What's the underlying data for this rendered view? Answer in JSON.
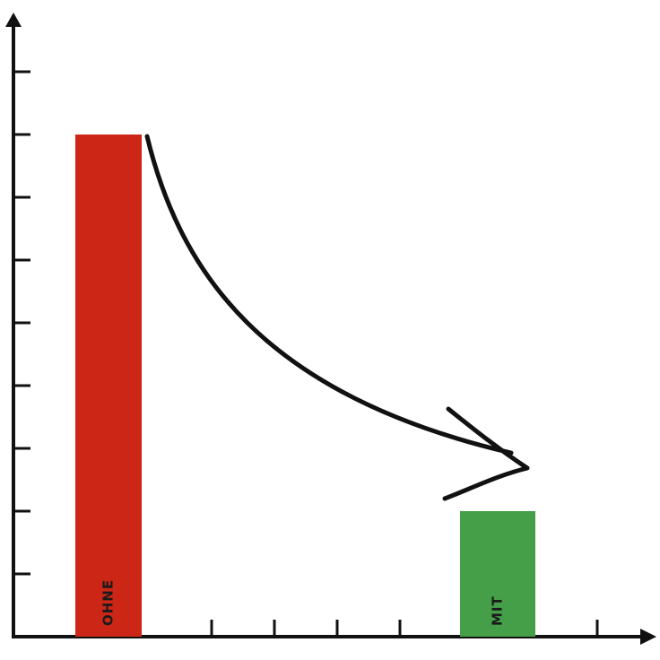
{
  "chart_data": {
    "type": "bar",
    "categories": [
      "OHNE",
      "MIT"
    ],
    "values": [
      8,
      2
    ],
    "colors": [
      "#cc2716",
      "#449f48"
    ],
    "ylim": [
      0,
      10
    ],
    "yticks": [
      1,
      2,
      3,
      4,
      5,
      6,
      7,
      8,
      9
    ]
  }
}
